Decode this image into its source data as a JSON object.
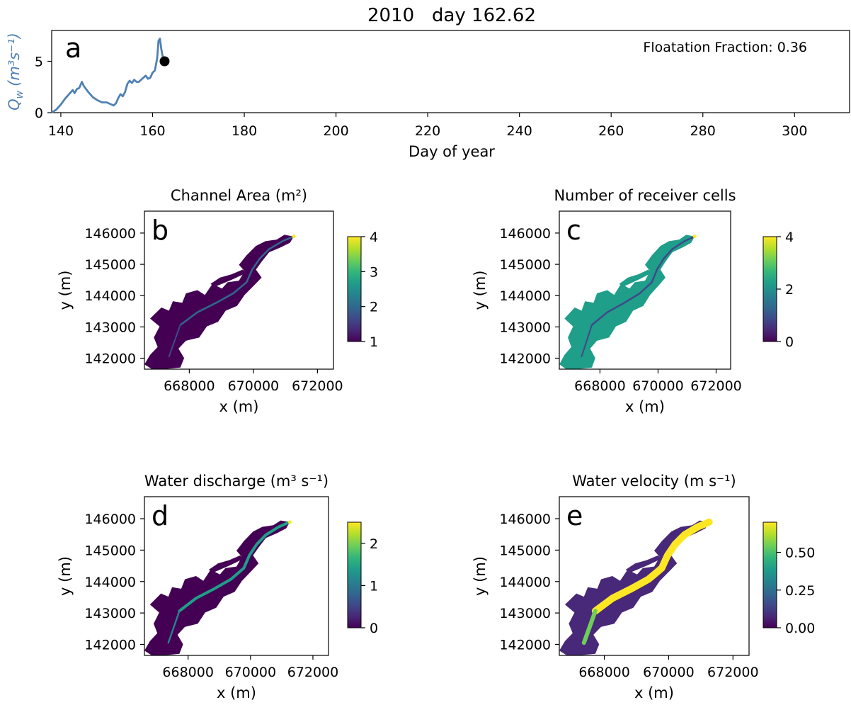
{
  "figure_title": "2010   day 162.62",
  "colors": {
    "hydrograph": "#4f81b4",
    "viridis": [
      "#440154",
      "#482878",
      "#3e4a89",
      "#31688e",
      "#26828e",
      "#1f9e89",
      "#35b779",
      "#6ece58",
      "#b5de2b",
      "#fde725"
    ]
  },
  "chart_data": [
    {
      "type": "line",
      "panel_label": "a",
      "xlabel": "Day of year",
      "ylabel": "Q_w (m³s⁻¹)",
      "ylabel_parts": {
        "q": "Q",
        "sub": "w",
        "units": "(m³s⁻¹)"
      },
      "xlim": [
        138,
        312
      ],
      "ylim": [
        0,
        8
      ],
      "xticks": [
        140,
        160,
        180,
        200,
        220,
        240,
        260,
        280,
        300
      ],
      "yticks": [
        0,
        5
      ],
      "annotation": "Floatation Fraction: 0.36",
      "current_point": {
        "x": 162.62,
        "y": 5.0
      },
      "series": [
        {
          "x": [
            138.0,
            139.0,
            140.0,
            141.0,
            142.0,
            142.6,
            143.0,
            143.5,
            144.0,
            144.6,
            145.0,
            145.5,
            146.0,
            147.0,
            148.0,
            149.0,
            150.0,
            151.0,
            151.5,
            152.0,
            152.5,
            153.0,
            153.5,
            154.0,
            154.5,
            155.0,
            155.5,
            156.0,
            156.5,
            157.0,
            157.5,
            158.0,
            158.5,
            159.0,
            159.5,
            160.0,
            160.5,
            161.0,
            161.3,
            161.6,
            161.9,
            162.2,
            162.62
          ],
          "y": [
            0.0,
            0.3,
            0.8,
            1.4,
            1.9,
            2.2,
            1.9,
            2.3,
            2.4,
            3.0,
            2.6,
            2.3,
            2.0,
            1.5,
            1.2,
            1.0,
            1.0,
            0.8,
            0.7,
            0.9,
            1.4,
            1.8,
            1.6,
            2.0,
            2.8,
            3.1,
            2.9,
            3.2,
            3.0,
            3.0,
            3.2,
            3.4,
            3.6,
            3.3,
            3.4,
            3.9,
            4.1,
            5.3,
            7.0,
            7.2,
            6.2,
            5.5,
            5.0
          ]
        }
      ]
    },
    {
      "type": "heatmap",
      "panel_label": "b",
      "title": "Channel Area (m²)",
      "xlabel": "x (m)",
      "ylabel": "y (m)",
      "xticks": [
        668000,
        670000,
        672000
      ],
      "yticks": [
        146000,
        145000,
        144000,
        143000,
        142000
      ],
      "colorbar": {
        "min": 1,
        "max": 4,
        "ticks": [
          1,
          2,
          3,
          4
        ]
      },
      "background_value": 1.0,
      "channel_value": 2.0
    },
    {
      "type": "heatmap",
      "panel_label": "c",
      "title": "Number of receiver cells",
      "xlabel": "x (m)",
      "ylabel": "y (m)",
      "xticks": [
        668000,
        670000,
        672000
      ],
      "yticks": [
        146000,
        145000,
        144000,
        143000,
        142000
      ],
      "colorbar": {
        "min": 0,
        "max": 4,
        "ticks": [
          0,
          2,
          4
        ]
      },
      "background_value": 2.0,
      "channel_value": 1.0
    },
    {
      "type": "heatmap",
      "panel_label": "d",
      "title": "Water discharge (m³ s⁻¹)",
      "xlabel": "x (m)",
      "ylabel": "y (m)",
      "xticks": [
        668000,
        670000,
        672000
      ],
      "yticks": [
        146000,
        145000,
        144000,
        143000,
        142000
      ],
      "colorbar": {
        "min": 0,
        "max": 2.5,
        "ticks": [
          0,
          1,
          2
        ]
      },
      "background_value": 0.05,
      "channel_value": 1.5
    },
    {
      "type": "heatmap",
      "panel_label": "e",
      "title": "Water velocity (m s⁻¹)",
      "xlabel": "x (m)",
      "ylabel": "y (m)",
      "xticks": [
        668000,
        670000,
        672000
      ],
      "yticks": [
        146000,
        145000,
        144000,
        143000,
        142000
      ],
      "ytick_labels": [
        "146000",
        "145000",
        "144000",
        "143000",
        "142000"
      ],
      "colorbar": {
        "min": 0.0,
        "max": 0.7,
        "ticks": [
          0.0,
          0.25,
          0.5
        ],
        "tick_labels": [
          "0.00",
          "0.25",
          "0.50"
        ]
      },
      "background_value": 0.08,
      "channel_value": 0.7
    }
  ]
}
